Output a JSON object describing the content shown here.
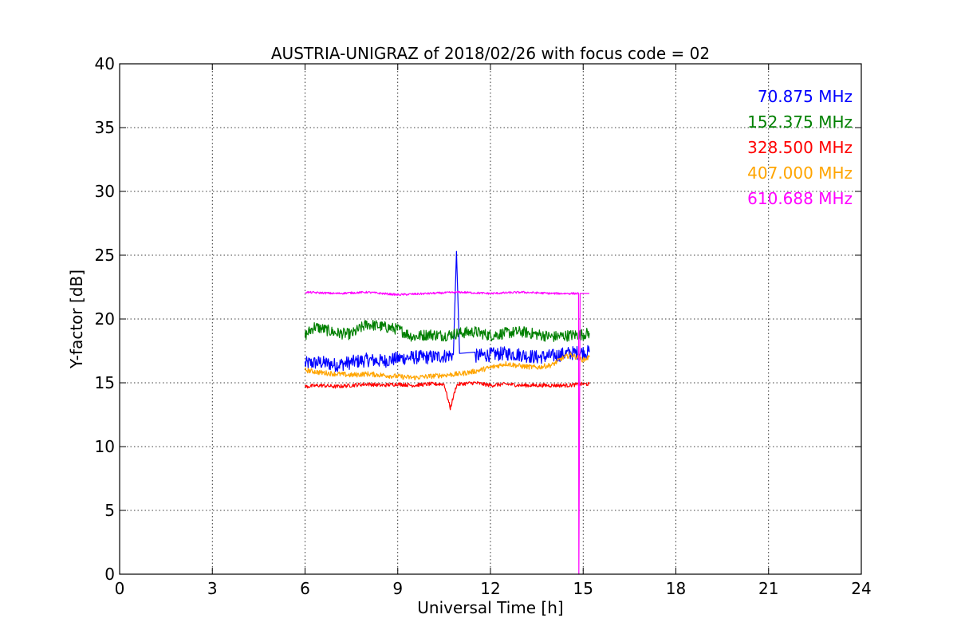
{
  "chart_data": {
    "type": "line",
    "title": "AUSTRIA-UNIGRAZ of 2018/02/26 with focus code = 02",
    "xlabel": "Universal Time [h]",
    "ylabel": "Y-factor [dB]",
    "xlim": [
      0,
      24
    ],
    "ylim": [
      0,
      40
    ],
    "xticks": [
      0,
      3,
      6,
      9,
      12,
      15,
      18,
      21,
      24
    ],
    "yticks": [
      0,
      5,
      10,
      15,
      20,
      25,
      30,
      35,
      40
    ],
    "grid": true,
    "legend_position": "top-right",
    "series": [
      {
        "name": "70.875 MHz",
        "color": "#0000ff",
        "x": [
          6.0,
          6.5,
          7.0,
          7.5,
          8.0,
          8.5,
          9.0,
          9.5,
          10.0,
          10.5,
          10.8,
          10.9,
          11.0,
          11.5,
          12.0,
          12.5,
          13.0,
          13.5,
          14.0,
          14.5,
          15.0,
          15.2
        ],
        "y": [
          16.5,
          16.6,
          16.4,
          16.6,
          16.8,
          16.7,
          16.9,
          17.0,
          17.0,
          17.1,
          17.2,
          25.3,
          17.3,
          17.1,
          17.2,
          17.3,
          17.2,
          17.0,
          17.1,
          17.3,
          17.4,
          17.4
        ]
      },
      {
        "name": "152.375 MHz",
        "color": "#008000",
        "x": [
          6.0,
          6.3,
          6.6,
          7.0,
          7.5,
          8.0,
          8.5,
          9.0,
          9.5,
          10.0,
          10.5,
          11.0,
          11.5,
          12.0,
          12.5,
          13.0,
          13.5,
          14.0,
          14.5,
          15.0,
          15.2
        ],
        "y": [
          18.7,
          19.4,
          19.2,
          18.9,
          18.8,
          19.6,
          19.4,
          19.2,
          18.6,
          18.8,
          18.7,
          18.9,
          19.0,
          18.7,
          18.9,
          19.0,
          18.8,
          18.6,
          18.7,
          18.8,
          18.9
        ]
      },
      {
        "name": "328.500 MHz",
        "color": "#ff0000",
        "x": [
          6.0,
          6.5,
          7.0,
          7.5,
          8.0,
          8.5,
          9.0,
          9.5,
          10.0,
          10.5,
          10.7,
          10.9,
          11.0,
          11.5,
          12.0,
          12.5,
          13.0,
          13.5,
          14.0,
          14.5,
          15.0,
          15.2
        ],
        "y": [
          14.7,
          14.8,
          14.7,
          14.8,
          14.9,
          14.8,
          14.9,
          14.8,
          14.9,
          14.9,
          13.0,
          14.8,
          14.9,
          15.0,
          14.8,
          14.9,
          14.8,
          14.8,
          14.8,
          14.8,
          14.9,
          14.9
        ]
      },
      {
        "name": "407.000 MHz",
        "color": "#ffa500",
        "x": [
          6.0,
          6.5,
          7.0,
          7.5,
          8.0,
          8.5,
          9.0,
          9.5,
          10.0,
          10.5,
          11.0,
          11.5,
          12.0,
          12.5,
          13.0,
          13.5,
          14.0,
          14.3,
          14.6,
          15.0,
          15.2
        ],
        "y": [
          16.0,
          15.8,
          15.7,
          15.6,
          15.7,
          15.6,
          15.5,
          15.4,
          15.5,
          15.6,
          15.7,
          15.9,
          16.2,
          16.5,
          16.3,
          16.2,
          16.4,
          16.9,
          17.2,
          16.8,
          17.0
        ]
      },
      {
        "name": "610.688 MHz",
        "color": "#ff00ff",
        "x": [
          6.0,
          7.0,
          8.0,
          9.0,
          10.0,
          11.0,
          12.0,
          13.0,
          14.0,
          14.85,
          14.86,
          14.9,
          15.2
        ],
        "y": [
          22.1,
          22.0,
          22.1,
          21.9,
          22.0,
          22.1,
          22.0,
          22.1,
          22.0,
          22.0,
          0.0,
          22.0,
          22.0
        ]
      }
    ]
  }
}
